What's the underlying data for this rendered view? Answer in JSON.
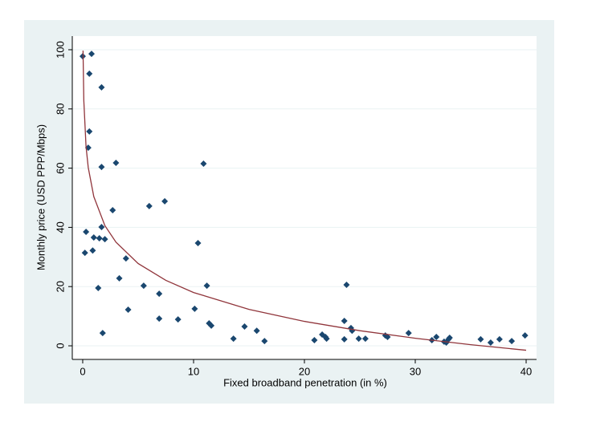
{
  "chart_data": {
    "type": "scatter",
    "x_label": "Fixed broadband penetration (in %)",
    "y_label": "Monthly price (USD PPP/Mbps)",
    "xlim": [
      -0.94,
      40.94
    ],
    "ylim": [
      -4.6,
      104.6
    ],
    "xticks": [
      0,
      10,
      20,
      30,
      40
    ],
    "yticks": [
      0,
      20,
      40,
      60,
      80,
      100
    ],
    "grid": true,
    "series": [
      {
        "color": "#1a476f",
        "mode": "markers",
        "x": [
          0,
          0.8,
          0.6,
          1.7,
          0.6,
          0.5,
          1.7,
          3.0,
          10.9,
          2.7,
          6.0,
          7.4,
          0.3,
          1.7,
          1.0,
          1.5,
          2.0,
          0.2,
          0.9,
          3.9,
          10.4,
          3.3,
          1.4,
          5.5,
          11.2,
          6.9,
          4.1,
          10.1,
          23.8,
          6.9,
          8.6,
          11.4,
          11.6,
          1.8,
          13.6,
          14.6,
          15.7,
          16.4,
          20.9,
          21.6,
          21.9,
          22.0,
          23.6,
          24.2,
          24.3,
          23.6,
          24.9,
          25.5,
          27.3,
          27.5,
          29.4,
          31.5,
          31.9,
          32.6,
          32.8,
          33.0,
          33.1,
          35.9,
          36.8,
          37.6,
          38.7,
          39.9
        ],
        "values": [
          97.8,
          98.6,
          91.9,
          87.3,
          72.4,
          66.9,
          60.4,
          61.8,
          61.5,
          45.8,
          47.2,
          48.8,
          38.5,
          40.1,
          36.6,
          36.3,
          36.0,
          31.4,
          32.2,
          29.5,
          34.7,
          22.8,
          19.5,
          20.3,
          20.3,
          17.6,
          12.2,
          12.5,
          20.6,
          9.2,
          8.9,
          7.6,
          6.8,
          4.3,
          2.4,
          6.5,
          5.1,
          1.6,
          1.9,
          3.8,
          3.0,
          2.4,
          8.4,
          6.0,
          5.1,
          2.2,
          2.4,
          2.4,
          3.5,
          3.0,
          4.3,
          1.9,
          3.0,
          1.4,
          1.1,
          2.2,
          2.7,
          2.2,
          1.1,
          2.2,
          1.6,
          3.5
        ]
      },
      {
        "color": "#90353b",
        "mode": "lines",
        "x": [
          0.03,
          0.1,
          0.3,
          0.5,
          1,
          2,
          3,
          5,
          7.5,
          10,
          15,
          20,
          25,
          30,
          35,
          40
        ],
        "values": [
          99.7,
          82.8,
          67.3,
          60.2,
          50.4,
          40.6,
          35.0,
          27.8,
          22.1,
          18.0,
          12.3,
          8.25,
          5.1,
          2.55,
          0.38,
          -1.5
        ]
      }
    ]
  }
}
